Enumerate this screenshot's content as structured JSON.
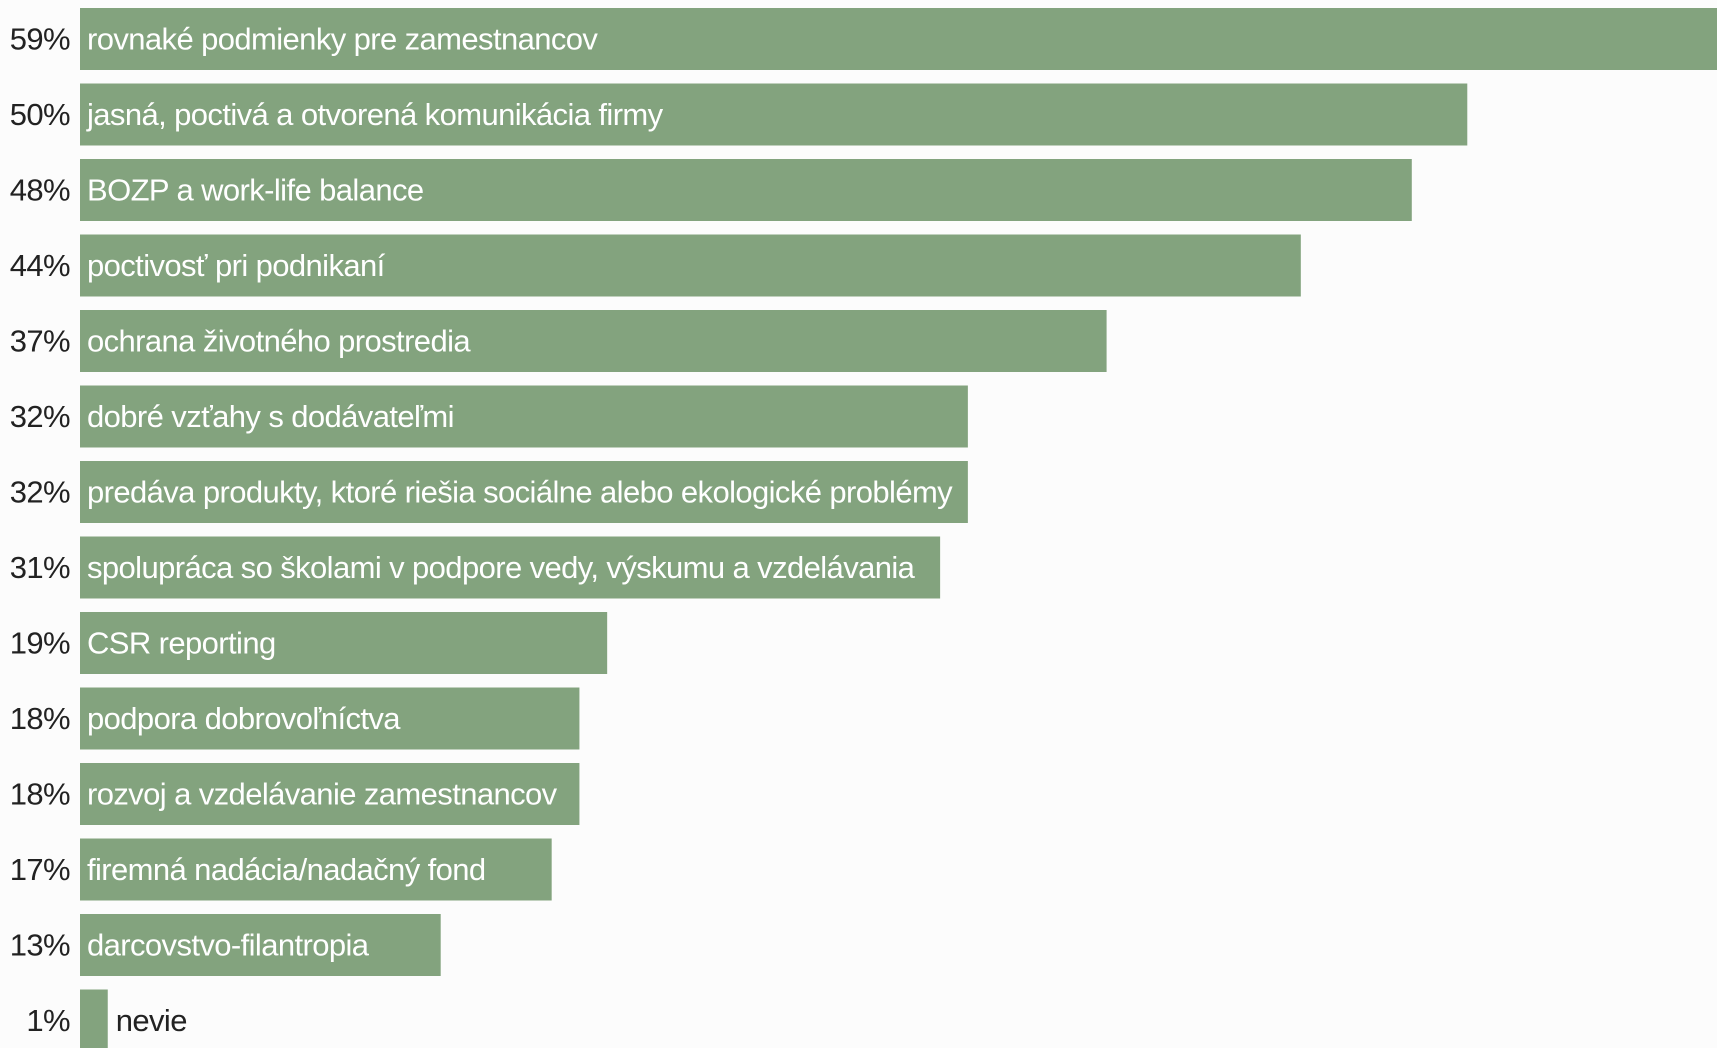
{
  "chart_data": {
    "type": "bar",
    "orientation": "horizontal",
    "bar_color": "#83a37e",
    "label_color_inside": "#ffffff",
    "label_color_outside": "#222222",
    "value_label_color": "#222222",
    "categories": [
      "rovnaké podmienky pre zamestnancov",
      "jasná, poctivá a otvorená komunikácia firmy",
      "BOZP a work-life balance",
      "poctivosť pri podnikaní",
      "ochrana životného prostredia",
      "dobré vzťahy s dodávateľmi",
      "predáva produkty, ktoré riešia sociálne alebo ekologické problémy",
      "spolupráca so školami v podpore vedy, výskumu a vzdelávania",
      "CSR reporting",
      "podpora dobrovoľníctva",
      "rozvoj a vzdelávanie zamestnancov",
      "firemná nadácia/nadačný fond",
      "darcovstvo-filantropia",
      "nevie"
    ],
    "values": [
      59,
      50,
      48,
      44,
      37,
      32,
      32,
      31,
      19,
      18,
      18,
      17,
      13,
      1
    ],
    "value_labels": [
      "59%",
      "50%",
      "48%",
      "44%",
      "37%",
      "32%",
      "32%",
      "31%",
      "19%",
      "18%",
      "18%",
      "17%",
      "13%",
      "1%"
    ],
    "xlim": [
      0,
      59
    ],
    "grid": false,
    "legend": "none"
  }
}
